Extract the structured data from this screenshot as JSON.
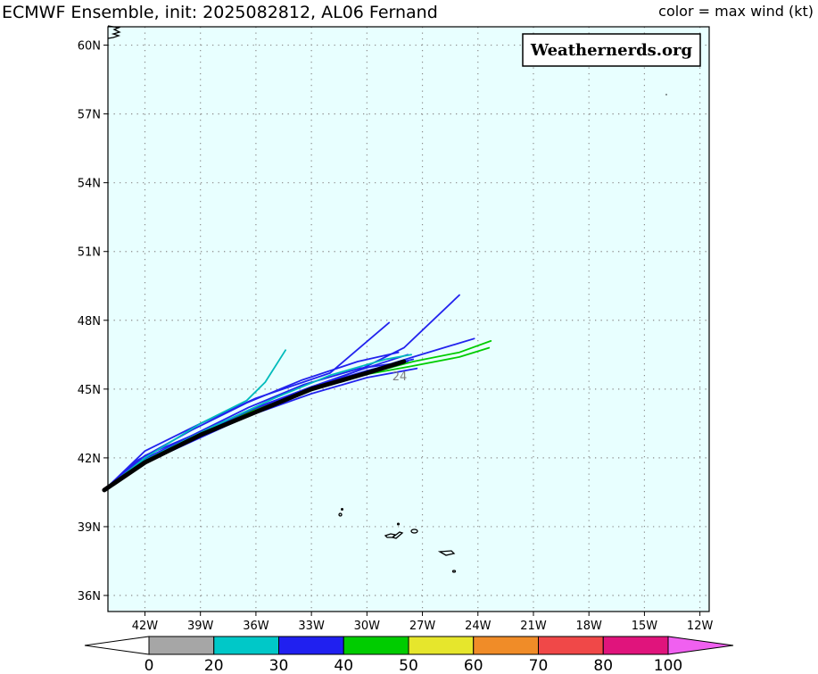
{
  "header": {
    "title": "ECMWF Ensemble, init: 2025082812, AL06 Fernand",
    "legend_note": "color = max wind (kt)"
  },
  "watermark": "Weathernerds.org",
  "map": {
    "background_color": "#E8FFFF",
    "lon_range": [
      -44,
      -11.5
    ],
    "lat_range": [
      35.3,
      60.8
    ],
    "lon_ticks": [
      {
        "value": -42,
        "label": "42W"
      },
      {
        "value": -39,
        "label": "39W"
      },
      {
        "value": -36,
        "label": "36W"
      },
      {
        "value": -33,
        "label": "33W"
      },
      {
        "value": -30,
        "label": "30W"
      },
      {
        "value": -27,
        "label": "27W"
      },
      {
        "value": -24,
        "label": "24W"
      },
      {
        "value": -21,
        "label": "21W"
      },
      {
        "value": -18,
        "label": "18W"
      },
      {
        "value": -15,
        "label": "15W"
      },
      {
        "value": -12,
        "label": "12W"
      }
    ],
    "lat_ticks": [
      {
        "value": 36,
        "label": "36N"
      },
      {
        "value": 39,
        "label": "39N"
      },
      {
        "value": 42,
        "label": "42N"
      },
      {
        "value": 45,
        "label": "45N"
      },
      {
        "value": 48,
        "label": "48N"
      },
      {
        "value": 51,
        "label": "51N"
      },
      {
        "value": 54,
        "label": "54N"
      },
      {
        "value": 57,
        "label": "57N"
      },
      {
        "value": 60,
        "label": "60N"
      }
    ],
    "grid": "dotted",
    "hour_label": "24"
  },
  "chart_data": {
    "type": "line",
    "title": "ECMWF Ensemble, init: 2025082812, AL06 Fernand",
    "xlabel": "",
    "ylabel": "",
    "xlim": [
      -44,
      -11.5
    ],
    "ylim": [
      35.3,
      60.8
    ],
    "grid": true,
    "color_key": "max wind (kt)",
    "series": [
      {
        "color": "#2222EE",
        "points": [
          [
            -44.2,
            40.6
          ],
          [
            -42.4,
            41.9
          ],
          [
            -39.5,
            43.2
          ],
          [
            -36.5,
            44.4
          ],
          [
            -33.5,
            45.4
          ],
          [
            -30.5,
            46.2
          ],
          [
            -28.3,
            46.6
          ]
        ]
      },
      {
        "color": "#2222EE",
        "points": [
          [
            -44.2,
            40.6
          ],
          [
            -42.0,
            42.3
          ],
          [
            -39.0,
            43.5
          ],
          [
            -36.0,
            44.6
          ],
          [
            -32.0,
            45.7
          ],
          [
            -28.8,
            47.9
          ]
        ]
      },
      {
        "color": "#2222EE",
        "points": [
          [
            -44.2,
            40.6
          ],
          [
            -42.0,
            42.1
          ],
          [
            -38.5,
            43.3
          ],
          [
            -34.5,
            44.6
          ],
          [
            -30.5,
            45.8
          ],
          [
            -28.0,
            46.8
          ],
          [
            -25.0,
            49.1
          ]
        ]
      },
      {
        "color": "#2222EE",
        "points": [
          [
            -44.2,
            40.6
          ],
          [
            -42.5,
            41.7
          ],
          [
            -39.5,
            42.9
          ],
          [
            -36.5,
            44.0
          ],
          [
            -33.0,
            45.1
          ],
          [
            -30.0,
            45.8
          ],
          [
            -27.5,
            46.3
          ]
        ]
      },
      {
        "color": "#2222EE",
        "points": [
          [
            -44.2,
            40.6
          ],
          [
            -42.5,
            41.6
          ],
          [
            -39.5,
            42.7
          ],
          [
            -36.5,
            43.8
          ],
          [
            -33.0,
            44.8
          ],
          [
            -30.0,
            45.5
          ],
          [
            -27.3,
            45.9
          ]
        ]
      },
      {
        "color": "#2222EE",
        "points": [
          [
            -44.2,
            40.6
          ],
          [
            -42.3,
            41.8
          ],
          [
            -39.3,
            43.0
          ],
          [
            -36.3,
            44.1
          ],
          [
            -33.0,
            45.1
          ],
          [
            -30.5,
            45.8
          ],
          [
            -27.8,
            46.5
          ]
        ]
      },
      {
        "color": "#2222EE",
        "points": [
          [
            -44.2,
            40.6
          ],
          [
            -42.0,
            41.9
          ],
          [
            -39.0,
            43.0
          ],
          [
            -35.5,
            44.3
          ],
          [
            -32.5,
            45.2
          ],
          [
            -29.5,
            45.9
          ],
          [
            -27.5,
            46.4
          ],
          [
            -24.2,
            47.2
          ]
        ]
      },
      {
        "color": "#2222EE",
        "points": [
          [
            -44.2,
            40.6
          ],
          [
            -42.4,
            41.8
          ],
          [
            -39.4,
            43.0
          ],
          [
            -36.4,
            44.2
          ],
          [
            -33.4,
            45.2
          ],
          [
            -30.4,
            45.9
          ],
          [
            -27.8,
            46.2
          ]
        ]
      },
      {
        "color": "#00BBBB",
        "points": [
          [
            -44.2,
            40.6
          ],
          [
            -42.0,
            42.0
          ],
          [
            -39.0,
            43.5
          ],
          [
            -36.5,
            44.5
          ],
          [
            -35.5,
            45.3
          ],
          [
            -34.4,
            46.7
          ]
        ]
      },
      {
        "color": "#00BBBB",
        "points": [
          [
            -44.2,
            40.6
          ],
          [
            -42.0,
            41.9
          ],
          [
            -38.5,
            43.3
          ],
          [
            -35.0,
            44.6
          ],
          [
            -32.0,
            45.6
          ],
          [
            -29.0,
            46.3
          ],
          [
            -27.6,
            46.5
          ]
        ]
      },
      {
        "color": "#00CC00",
        "points": [
          [
            -44.2,
            40.6
          ],
          [
            -42.3,
            41.7
          ],
          [
            -39.3,
            42.9
          ],
          [
            -36.3,
            44.0
          ],
          [
            -33.3,
            44.9
          ],
          [
            -30.3,
            45.6
          ],
          [
            -27.5,
            46.2
          ],
          [
            -25.0,
            46.6
          ],
          [
            -23.3,
            47.1
          ]
        ]
      },
      {
        "color": "#00CC00",
        "points": [
          [
            -44.2,
            40.6
          ],
          [
            -42.3,
            41.7
          ],
          [
            -39.3,
            42.9
          ],
          [
            -36.3,
            44.0
          ],
          [
            -33.3,
            44.9
          ],
          [
            -30.3,
            45.6
          ],
          [
            -27.6,
            46.0
          ],
          [
            -25.0,
            46.4
          ],
          [
            -23.4,
            46.8
          ]
        ]
      },
      {
        "color": "#000000",
        "name": "",
        "points": [
          [
            -44.2,
            40.6
          ],
          [
            -42.0,
            41.8
          ],
          [
            -39.0,
            43.0
          ],
          [
            -36.0,
            44.0
          ],
          [
            -33.0,
            45.0
          ],
          [
            -30.0,
            45.7
          ],
          [
            -28.0,
            46.2
          ]
        ]
      }
    ],
    "colorbar": {
      "labels": [
        "0",
        "20",
        "30",
        "40",
        "50",
        "60",
        "70",
        "80",
        "100"
      ],
      "colors": [
        "#A6A6A6",
        "#00C8C8",
        "#2020F0",
        "#00CC00",
        "#E6E62C",
        "#F08C28",
        "#F04848",
        "#E0147C",
        "#F060F0"
      ],
      "under_color": "#FFFFFF",
      "over_color": "#F060F0"
    }
  }
}
